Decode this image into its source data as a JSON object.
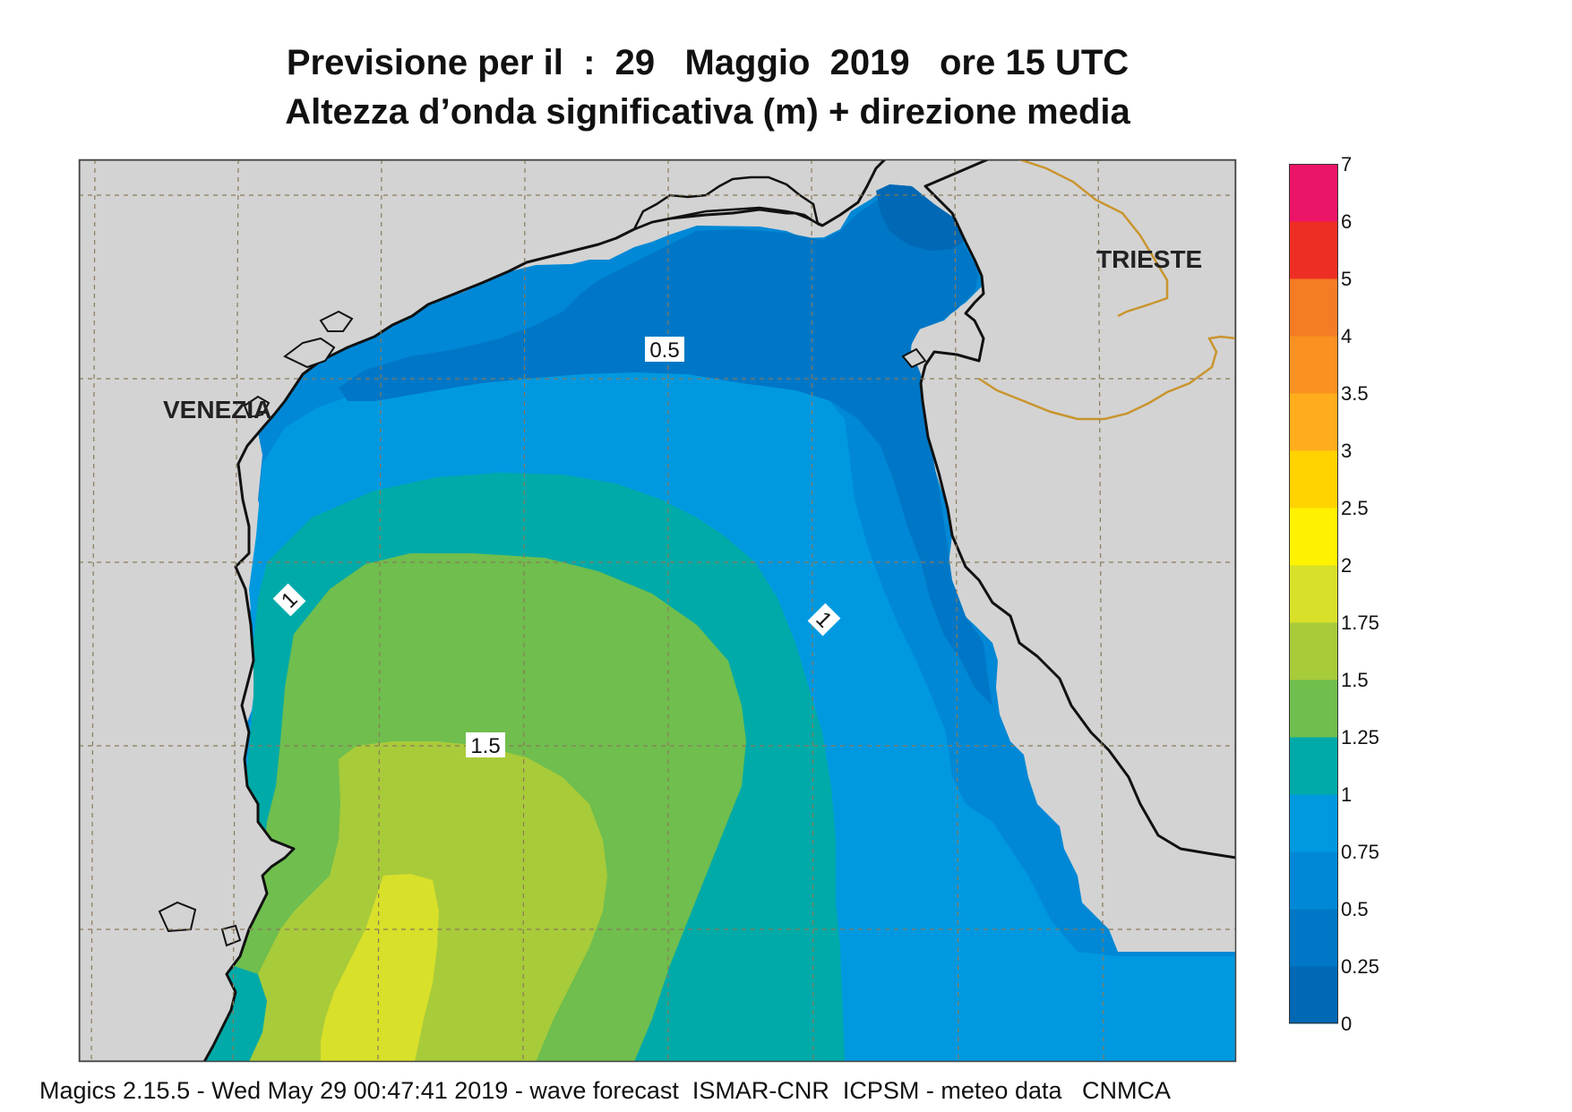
{
  "header": {
    "title_line1": "Previsione per il  :  29   Maggio  2019   ore 15 UTC",
    "title_line2": "Altezza d’onda significativa (m) + direzione media"
  },
  "map": {
    "city_labels": [
      "VENEZIA",
      "TRIESTE"
    ],
    "contour_labels": [
      "0.5",
      "1",
      "1",
      "1.5"
    ],
    "colors": {
      "land": "#d3d3d3",
      "coast": "#111111",
      "border": "#c9952e",
      "grid": "#8a7a5a",
      "arrow": "#222222"
    }
  },
  "legend": {
    "levels": [
      "0",
      "0.25",
      "0.5",
      "0.75",
      "1",
      "1.25",
      "1.5",
      "1.75",
      "2",
      "2.5",
      "3",
      "3.5",
      "4",
      "5",
      "6",
      "7"
    ],
    "colors": [
      "#0068b5",
      "#0077c6",
      "#0088d6",
      "#0099e0",
      "#00aaa8",
      "#6fbe4e",
      "#a8cb3a",
      "#d9e029",
      "#fff200",
      "#ffd200",
      "#ffad1c",
      "#fb9120",
      "#f57c25",
      "#ee2e24",
      "#ec1466"
    ]
  },
  "footer": {
    "text": "Magics 2.15.5 - Wed May 29 00:47:41 2019 - wave forecast  ISMAR-CNR  ICPSM - meteo data   CNMCA"
  }
}
